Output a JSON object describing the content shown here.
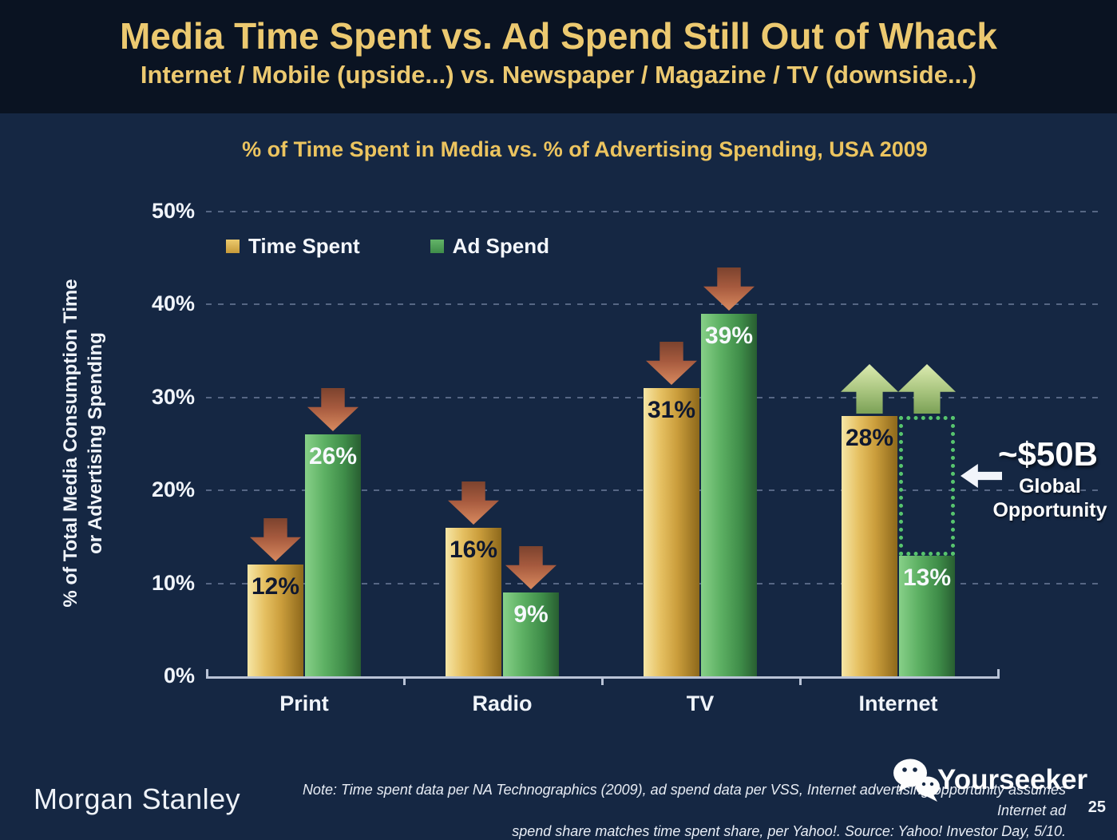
{
  "header": {
    "title": "Media Time Spent vs. Ad Spend Still Out of Whack",
    "subtitle": "Internet / Mobile (upside...) vs. Newspaper / Magazine / TV (downside...)"
  },
  "chart": {
    "title": "% of Time Spent in Media vs. % of Advertising Spending, USA 2009",
    "y_axis_label_line1": "% of Total Media Consumption Time",
    "y_axis_label_line2": "or Advertising Spending",
    "legend": [
      {
        "label": "Time Spent",
        "color": "#d9ae4e"
      },
      {
        "label": "Ad Spend",
        "color": "#4fa355"
      }
    ]
  },
  "chart_data": {
    "type": "bar",
    "title": "% of Time Spent in Media vs. % of Advertising Spending, USA 2009",
    "categories": [
      "Print",
      "Radio",
      "TV",
      "Internet"
    ],
    "series": [
      {
        "name": "Time Spent",
        "values": [
          12,
          16,
          31,
          28
        ],
        "labels": [
          "12%",
          "16%",
          "31%",
          "28%"
        ],
        "color": "#d9ae4e"
      },
      {
        "name": "Ad Spend",
        "values": [
          26,
          9,
          39,
          13
        ],
        "labels": [
          "26%",
          "9%",
          "39%",
          "13%"
        ],
        "color": "#4fa355"
      }
    ],
    "ylabel": "% of Total Media Consumption Time or Advertising Spending",
    "ylim": [
      0,
      50
    ],
    "yticks": [
      "0%",
      "10%",
      "20%",
      "30%",
      "40%",
      "50%"
    ],
    "grid": "dashed-horizontal",
    "legend_position": "top-left-inside",
    "trend_arrows": {
      "time_spent": [
        "down",
        "down",
        "down",
        "up"
      ],
      "ad_spend": [
        "down",
        "down",
        "down",
        "up"
      ]
    },
    "arrow_colors": {
      "down": "#c06a45",
      "up": "#a9c47f"
    }
  },
  "annotation": {
    "value": "~$50B",
    "label_line1": "Global",
    "label_line2": "Opportunity",
    "box_color": "#57c56e"
  },
  "footer": {
    "brand": "Morgan Stanley",
    "note_line1": "Note: Time spent data per NA Technographics (2009), ad spend data per VSS, Internet advertising opportunity assumes Internet ad",
    "note_line2": "spend share matches time spent share, per Yahoo!. Source: Yahoo! Investor Day, 5/10.",
    "watermark": "Yourseeker",
    "page_number": "25"
  },
  "colors": {
    "header_background": "#0a1322",
    "body_background": "#152743",
    "title_gold": "#ecc970",
    "bar_gold": "#d9ae4e",
    "bar_green": "#4fa355",
    "axis": "#b9c3d6"
  }
}
